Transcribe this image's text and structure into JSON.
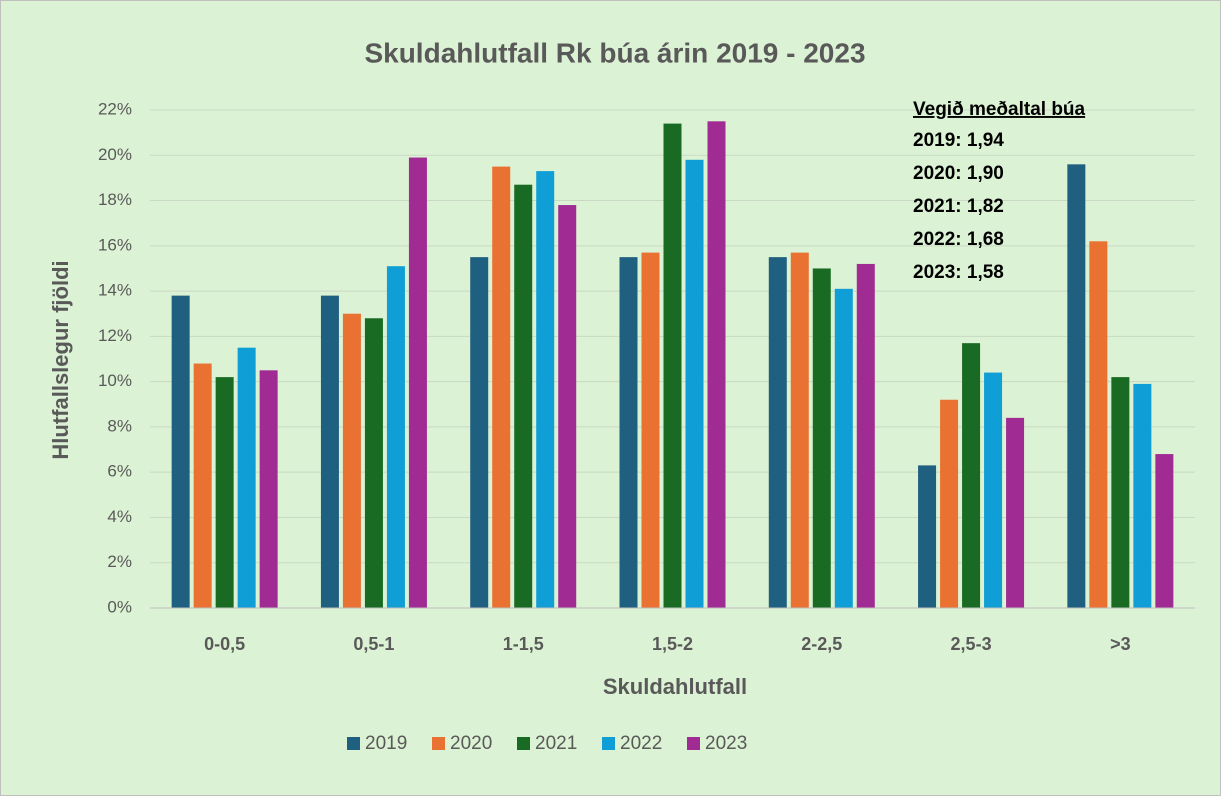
{
  "chart_data": {
    "type": "bar",
    "title": "Skuldahlutfall Rk búa árin 2019 - 2023",
    "x_label": "Skuldahlutfall",
    "y_label": "Hlutfallslegur fjöldi",
    "categories": [
      "0-0,5",
      "0,5-1",
      "1-1,5",
      "1,5-2",
      "2-2,5",
      "2,5-3",
      ">3"
    ],
    "series": [
      {
        "name": "2019",
        "color": "#1f5f7f",
        "values": [
          13.8,
          13.8,
          15.5,
          15.5,
          15.5,
          6.3,
          19.6
        ]
      },
      {
        "name": "2020",
        "color": "#e97132",
        "values": [
          10.8,
          13.0,
          19.5,
          15.7,
          15.7,
          9.2,
          16.2
        ]
      },
      {
        "name": "2021",
        "color": "#196b24",
        "values": [
          10.2,
          12.8,
          18.7,
          21.4,
          15.0,
          11.7,
          10.2
        ]
      },
      {
        "name": "2022",
        "color": "#0f9ed5",
        "values": [
          11.5,
          15.1,
          19.3,
          19.8,
          14.1,
          10.4,
          9.9
        ]
      },
      {
        "name": "2023",
        "color": "#a02b93",
        "values": [
          10.5,
          19.9,
          17.8,
          21.5,
          15.2,
          8.4,
          6.8
        ]
      }
    ],
    "ylim": [
      0,
      22
    ],
    "yticks": [
      {
        "value": 0,
        "label": "0%"
      },
      {
        "value": 2,
        "label": "2%"
      },
      {
        "value": 4,
        "label": "4%"
      },
      {
        "value": 6,
        "label": "6%"
      },
      {
        "value": 8,
        "label": "8%"
      },
      {
        "value": 10,
        "label": "10%"
      },
      {
        "value": 12,
        "label": "12%"
      },
      {
        "value": 14,
        "label": "14%"
      },
      {
        "value": 16,
        "label": "16%"
      },
      {
        "value": 18,
        "label": "18%"
      },
      {
        "value": 20,
        "label": "20%"
      },
      {
        "value": 22,
        "label": "22%"
      }
    ],
    "grid": true,
    "legend": "bottom",
    "annotation": {
      "title": "Vegið meðaltal búa",
      "lines": [
        "2019: 1,94",
        "2020: 1,90",
        "2021: 1,82",
        "2022: 1,68",
        "2023: 1,58"
      ]
    }
  }
}
